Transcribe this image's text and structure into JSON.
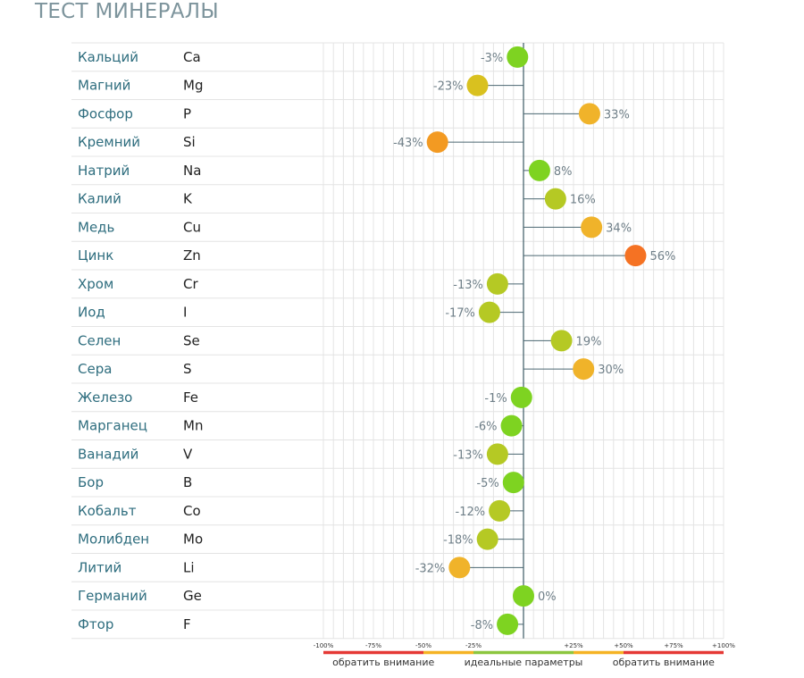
{
  "title": "ТЕСТ МИНЕРАЛЫ",
  "chart_data": {
    "type": "scatter",
    "title": "ТЕСТ МИНЕРАЛЫ",
    "xlabel": "",
    "ylabel": "",
    "xlim": [
      -100,
      100
    ],
    "grid": true,
    "rows": [
      {
        "name": "Кальций",
        "symbol": "Ca",
        "value": -3,
        "label": "-3%"
      },
      {
        "name": "Магний",
        "symbol": "Mg",
        "value": -23,
        "label": "-23%"
      },
      {
        "name": "Фосфор",
        "symbol": "P",
        "value": 33,
        "label": "33%"
      },
      {
        "name": "Кремний",
        "symbol": "Si",
        "value": -43,
        "label": "-43%"
      },
      {
        "name": "Натрий",
        "symbol": "Na",
        "value": 8,
        "label": "8%"
      },
      {
        "name": "Калий",
        "symbol": "K",
        "value": 16,
        "label": "16%"
      },
      {
        "name": "Медь",
        "symbol": "Cu",
        "value": 34,
        "label": "34%"
      },
      {
        "name": "Цинк",
        "symbol": "Zn",
        "value": 56,
        "label": "56%"
      },
      {
        "name": "Хром",
        "symbol": "Cr",
        "value": -13,
        "label": "-13%"
      },
      {
        "name": "Иод",
        "symbol": "I",
        "value": -17,
        "label": "-17%"
      },
      {
        "name": "Селен",
        "symbol": "Se",
        "value": 19,
        "label": "19%"
      },
      {
        "name": "Сера",
        "symbol": "S",
        "value": 30,
        "label": "30%"
      },
      {
        "name": "Железо",
        "symbol": "Fe",
        "value": -1,
        "label": "-1%"
      },
      {
        "name": "Марганец",
        "symbol": "Mn",
        "value": -6,
        "label": "-6%"
      },
      {
        "name": "Ванадий",
        "symbol": "V",
        "value": -13,
        "label": "-13%"
      },
      {
        "name": "Бор",
        "symbol": "B",
        "value": -5,
        "label": "-5%"
      },
      {
        "name": "Кобальт",
        "symbol": "Co",
        "value": -12,
        "label": "-12%"
      },
      {
        "name": "Молибден",
        "symbol": "Mo",
        "value": -18,
        "label": "-18%"
      },
      {
        "name": "Литий",
        "symbol": "Li",
        "value": -32,
        "label": "-32%"
      },
      {
        "name": "Германий",
        "symbol": "Ge",
        "value": 0,
        "label": "0%"
      },
      {
        "name": "Фтор",
        "symbol": "F",
        "value": -8,
        "label": "-8%"
      }
    ],
    "ticks": [
      {
        "value": -100,
        "label": "-100%"
      },
      {
        "value": -75,
        "label": "-75%"
      },
      {
        "value": -50,
        "label": "-50%"
      },
      {
        "value": -25,
        "label": "-25%"
      },
      {
        "value": 25,
        "label": "+25%"
      },
      {
        "value": 50,
        "label": "+50%"
      },
      {
        "value": 75,
        "label": "+75%"
      },
      {
        "value": 100,
        "label": "+100%"
      }
    ],
    "legend_bar": [
      {
        "from": -100,
        "to": -50,
        "color": "#e53935"
      },
      {
        "from": -50,
        "to": -25,
        "color": "#f5b324"
      },
      {
        "from": -25,
        "to": 25,
        "color": "#8cc63f"
      },
      {
        "from": 25,
        "to": 50,
        "color": "#f5b324"
      },
      {
        "from": 50,
        "to": 100,
        "color": "#e53935"
      }
    ],
    "legend_labels": [
      {
        "text": "обратить внимание",
        "value": -70
      },
      {
        "text": "идеальные параметры",
        "value": 0
      },
      {
        "text": "обратить внимание",
        "value": 70
      }
    ]
  },
  "colors": {
    "title": "#7d949c",
    "axis": "#4a6670",
    "grid": "#e4e4e4",
    "ideal": "#7ed321",
    "low": "#b5c924",
    "mid": "#d9c11f",
    "warn": "#f0b32a",
    "high": "#f39a22",
    "critical": "#f57223"
  }
}
